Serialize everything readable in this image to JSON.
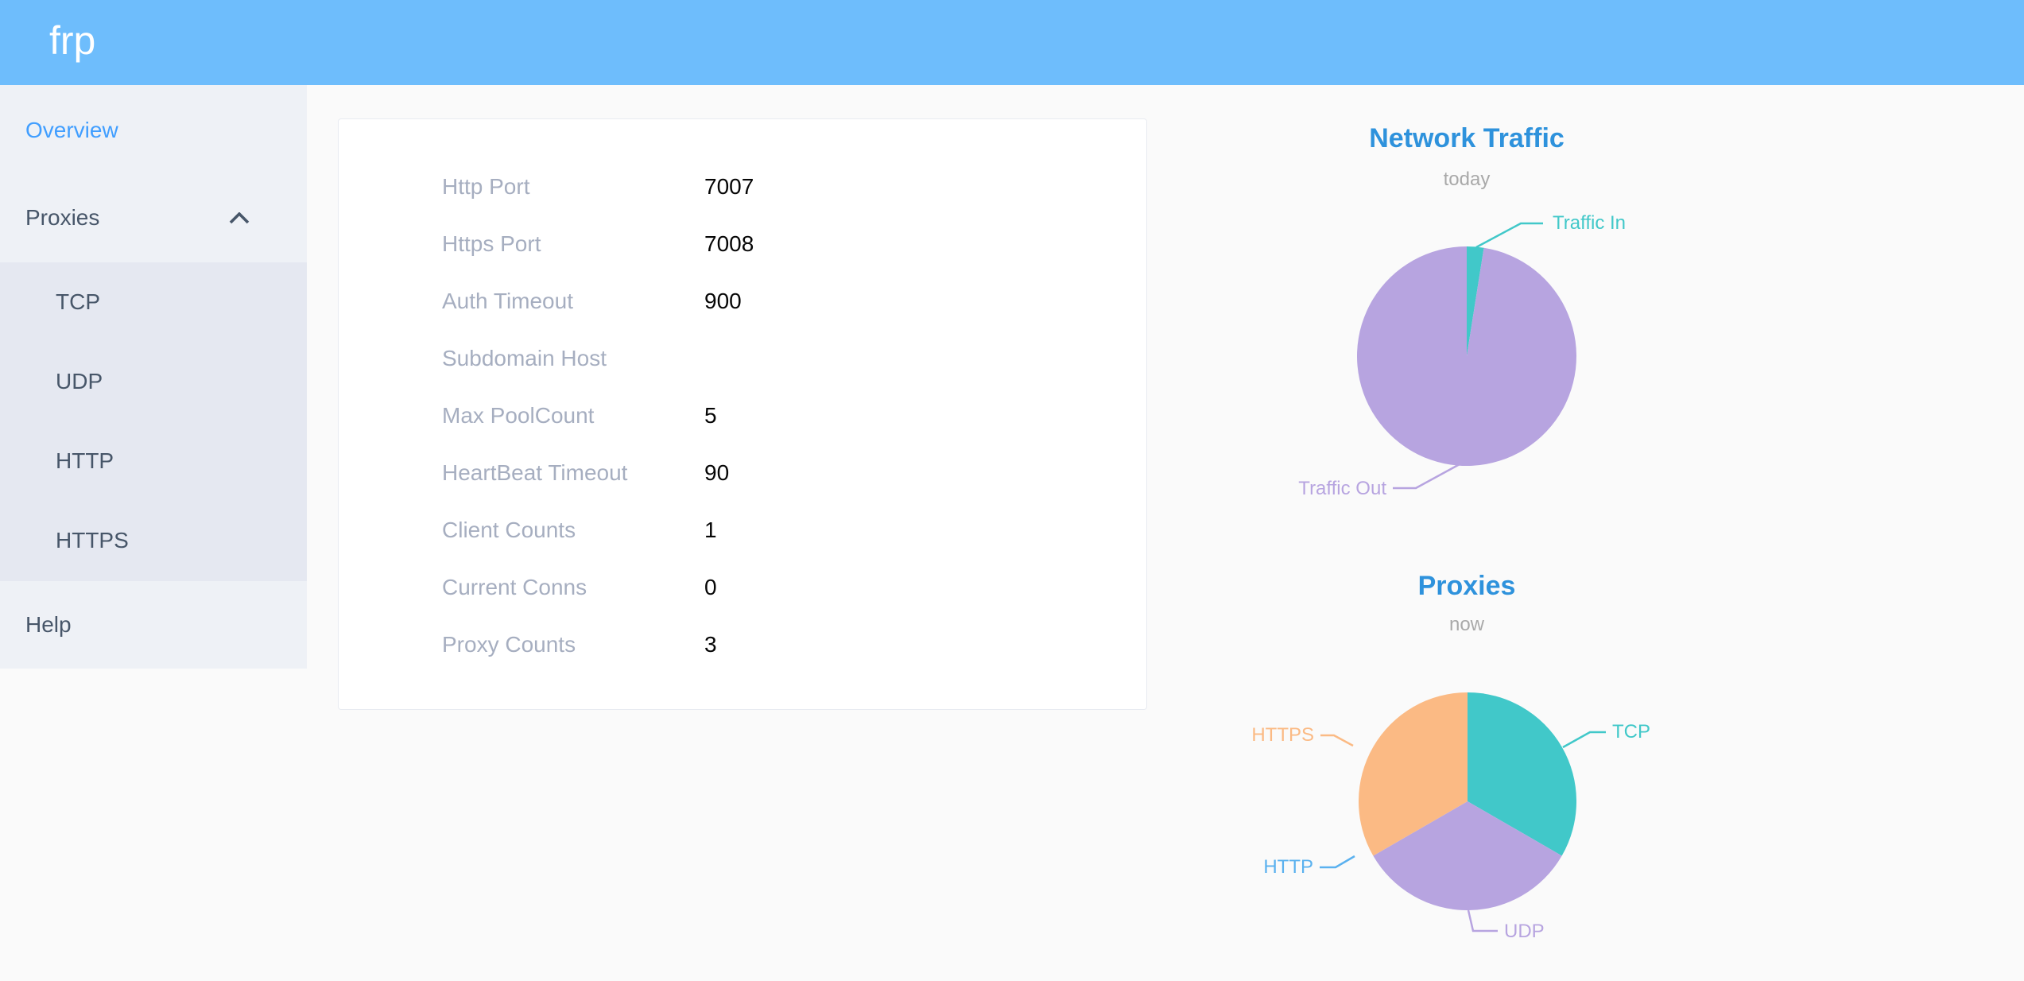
{
  "header": {
    "logo": "frp"
  },
  "sidebar": {
    "items": [
      {
        "label": "Overview",
        "active": true
      },
      {
        "label": "Proxies",
        "expanded": true
      },
      {
        "label": "TCP"
      },
      {
        "label": "UDP"
      },
      {
        "label": "HTTP"
      },
      {
        "label": "HTTPS"
      },
      {
        "label": "Help"
      }
    ]
  },
  "server_info": {
    "rows": [
      {
        "label": "Http Port",
        "value": "7007"
      },
      {
        "label": "Https Port",
        "value": "7008"
      },
      {
        "label": "Auth Timeout",
        "value": "900"
      },
      {
        "label": "Subdomain Host",
        "value": ""
      },
      {
        "label": "Max PoolCount",
        "value": "5"
      },
      {
        "label": "HeartBeat Timeout",
        "value": "90"
      },
      {
        "label": "Client Counts",
        "value": "1"
      },
      {
        "label": "Current Conns",
        "value": "0"
      },
      {
        "label": "Proxy Counts",
        "value": "3"
      }
    ]
  },
  "colors": {
    "header_bg": "#6ebdfc",
    "sidebar_bg": "#eef1f6",
    "submenu_bg": "#e5e8f1",
    "active_menu": "#409eff",
    "menu_text": "#475669",
    "label_text": "#a6aec0",
    "value_text": "#060606",
    "title_blue": "#2e92dc",
    "subtitle_gray": "#a9a9a9",
    "teal": "#41c8c9",
    "purple": "#b7a4e0",
    "blue": "#5ab1ef",
    "orange": "#fbba84"
  },
  "chart_data": [
    {
      "type": "pie",
      "title": "Network Traffic",
      "subtitle": "today",
      "labels": [
        "Traffic In",
        "Traffic Out"
      ],
      "values": [
        2.5,
        97.5
      ],
      "colors": [
        "#41c8c9",
        "#b7a4e0"
      ],
      "legend_position": "none",
      "label_position": "outside-with-leader-lines"
    },
    {
      "type": "pie",
      "title": "Proxies",
      "subtitle": "now",
      "labels": [
        "TCP",
        "UDP",
        "HTTP",
        "HTTPS"
      ],
      "values": [
        1,
        1,
        0,
        1
      ],
      "colors": [
        "#41c8c9",
        "#b7a4e0",
        "#5ab1ef",
        "#fbba84"
      ],
      "legend_position": "none",
      "label_position": "outside-with-leader-lines"
    }
  ]
}
